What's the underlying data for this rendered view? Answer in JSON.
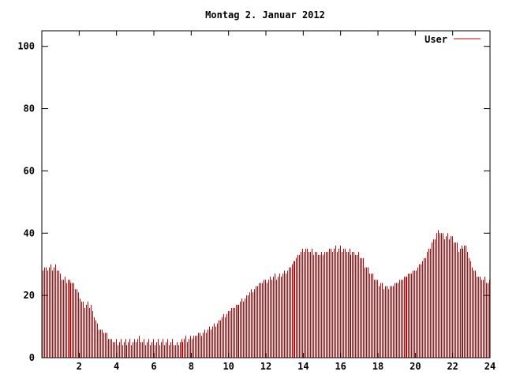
{
  "chart_data": {
    "type": "bar",
    "title": "Montag 2. Januar 2012",
    "xlabel": "",
    "ylabel": "",
    "xlim": [
      0,
      24
    ],
    "ylim": [
      0,
      105
    ],
    "x_ticks": [
      2,
      4,
      6,
      8,
      10,
      12,
      14,
      16,
      18,
      20,
      22,
      24
    ],
    "y_ticks": [
      0,
      20,
      40,
      60,
      80,
      100
    ],
    "grid": false,
    "legend_position": "top-right",
    "bar_color": "#cc0000",
    "sample_interval_minutes": 5,
    "series": [
      {
        "name": "User",
        "color": "#cc0000",
        "anchors": [
          [
            0.0,
            28
          ],
          [
            0.25,
            29
          ],
          [
            0.75,
            29
          ],
          [
            1.0,
            26
          ],
          [
            1.2,
            25
          ],
          [
            1.6,
            24
          ],
          [
            1.9,
            22
          ],
          [
            2.1,
            18
          ],
          [
            2.3,
            17
          ],
          [
            2.6,
            17
          ],
          [
            2.8,
            13
          ],
          [
            3.1,
            9
          ],
          [
            3.4,
            8
          ],
          [
            3.6,
            6
          ],
          [
            4.0,
            5
          ],
          [
            5.0,
            5
          ],
          [
            5.2,
            6
          ],
          [
            5.4,
            5
          ],
          [
            7.0,
            5
          ],
          [
            7.2,
            4
          ],
          [
            7.5,
            6
          ],
          [
            8.0,
            6
          ],
          [
            8.5,
            8
          ],
          [
            9.0,
            9
          ],
          [
            9.5,
            12
          ],
          [
            10.0,
            15
          ],
          [
            10.5,
            17
          ],
          [
            11.0,
            20
          ],
          [
            11.5,
            23
          ],
          [
            12.0,
            25
          ],
          [
            12.5,
            26
          ],
          [
            13.0,
            27
          ],
          [
            13.5,
            31
          ],
          [
            14.0,
            35
          ],
          [
            14.5,
            34
          ],
          [
            15.0,
            33
          ],
          [
            15.5,
            35
          ],
          [
            16.0,
            35
          ],
          [
            16.5,
            34
          ],
          [
            17.0,
            33
          ],
          [
            17.5,
            28
          ],
          [
            18.0,
            24
          ],
          [
            18.5,
            22
          ],
          [
            19.0,
            24
          ],
          [
            19.5,
            26
          ],
          [
            20.0,
            28
          ],
          [
            20.5,
            32
          ],
          [
            21.0,
            38
          ],
          [
            21.25,
            41
          ],
          [
            21.5,
            39
          ],
          [
            21.8,
            39
          ],
          [
            22.0,
            38
          ],
          [
            22.3,
            35
          ],
          [
            22.7,
            36
          ],
          [
            23.0,
            30
          ],
          [
            23.3,
            26
          ],
          [
            23.7,
            25
          ],
          [
            24.0,
            24
          ]
        ]
      }
    ]
  }
}
